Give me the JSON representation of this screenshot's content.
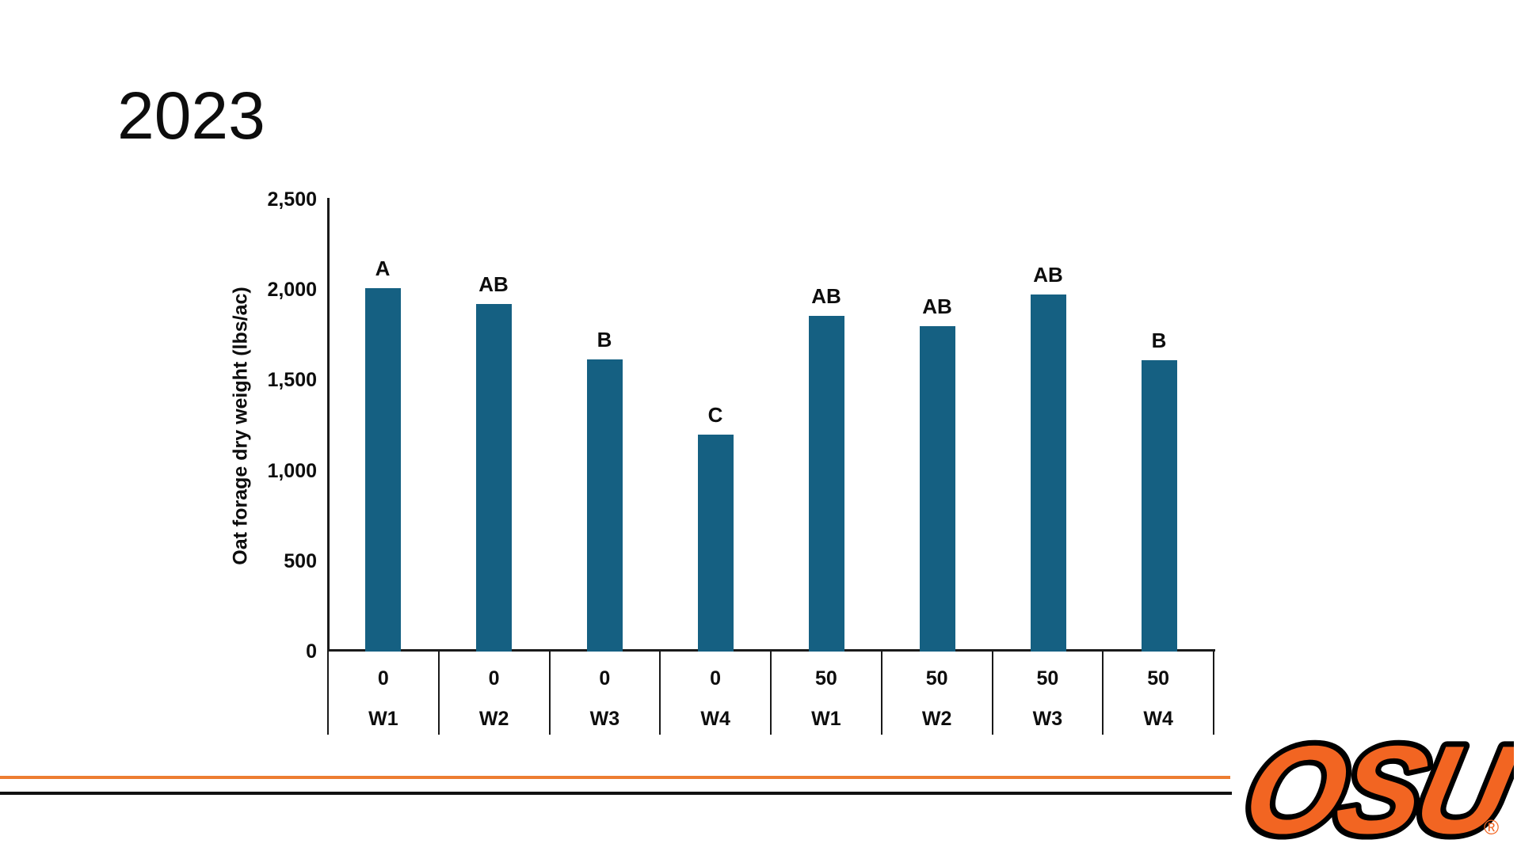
{
  "chart_data": {
    "type": "bar",
    "title": "2023",
    "ylabel": "Oat forage dry weight (lbs/ac)",
    "xlabel": "",
    "ylim": [
      0,
      2500
    ],
    "ytick_step": 500,
    "ytick_labels": [
      "0",
      "500",
      "1,000",
      "1,500",
      "2,000",
      "2,500"
    ],
    "grid": false,
    "legend": "none",
    "bar_color": "#156082",
    "categories": [
      {
        "n_rate": "0",
        "week": "W1"
      },
      {
        "n_rate": "0",
        "week": "W2"
      },
      {
        "n_rate": "0",
        "week": "W3"
      },
      {
        "n_rate": "0",
        "week": "W4"
      },
      {
        "n_rate": "50",
        "week": "W1"
      },
      {
        "n_rate": "50",
        "week": "W2"
      },
      {
        "n_rate": "50",
        "week": "W3"
      },
      {
        "n_rate": "50",
        "week": "W4"
      }
    ],
    "values": [
      2010,
      1920,
      1615,
      1200,
      1855,
      1800,
      1975,
      1610
    ],
    "bar_labels": [
      "A",
      "AB",
      "B",
      "C",
      "AB",
      "AB",
      "AB",
      "B"
    ]
  },
  "footer": {
    "orange_line_color": "#ED7D31",
    "black_line_color": "#111111"
  },
  "logo": {
    "text": "OSU",
    "registered": "®",
    "orange": "#F26522",
    "black": "#000000"
  }
}
